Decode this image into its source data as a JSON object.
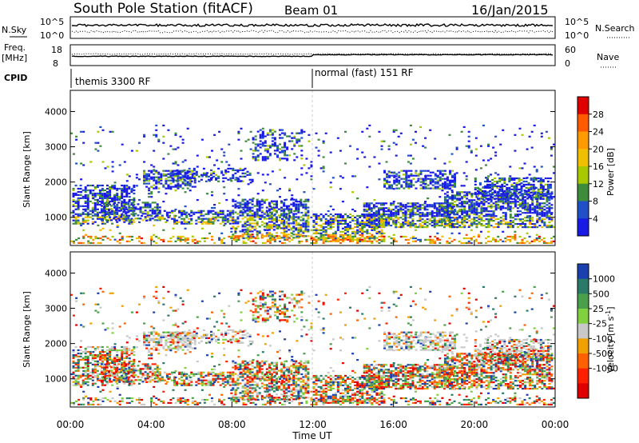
{
  "header": {
    "title": "South Pole Station (fitACF)",
    "beam": "Beam 01",
    "date": "16/Jan/2015"
  },
  "chart_data": [
    {
      "type": "line",
      "panel": "n-sky-search",
      "left_label": "N.Sky",
      "right_label": "N.Search",
      "left_ticks": [
        "10^5",
        "10^0"
      ],
      "right_ticks": [
        "10^5",
        "10^0"
      ]
    },
    {
      "type": "line",
      "panel": "freq-nave",
      "left_label_line1": "Freq.",
      "left_label_line2": "[MHz]",
      "right_label": "Nave",
      "left_ticks": [
        "18",
        "8"
      ],
      "right_ticks": [
        "60",
        "0"
      ]
    },
    {
      "type": "table",
      "panel": "cpid",
      "label": "CPID",
      "segments": [
        {
          "start_hour": 0,
          "name": "themis 3300 RF"
        },
        {
          "start_hour": 12,
          "name": "normal (fast) 151 RF"
        }
      ]
    },
    {
      "type": "heatmap",
      "panel": "power",
      "ylabel": "Slant Range [km]",
      "y_ticks": [
        1000,
        2000,
        3000,
        4000
      ],
      "ylim": [
        200,
        4600
      ],
      "xlim": [
        0,
        24
      ],
      "colorbar_label": "Power [dB]",
      "colorbar_ticks": [
        "28",
        "24",
        "20",
        "16",
        "12",
        "8",
        "4"
      ],
      "colorbar_colors": [
        "#e00000",
        "#ff5a00",
        "#ff9a00",
        "#f0c000",
        "#a8c800",
        "#3c8c3c",
        "#2050c8",
        "#1a1ae6"
      ]
    },
    {
      "type": "heatmap",
      "panel": "velocity",
      "ylabel": "Slant Range [km]",
      "y_ticks": [
        1000,
        2000,
        3000,
        4000
      ],
      "ylim": [
        200,
        4600
      ],
      "xlim": [
        0,
        24
      ],
      "xlabel": "Time UT",
      "x_ticks": [
        "00:00",
        "04:00",
        "08:00",
        "12:00",
        "16:00",
        "20:00",
        "00:00"
      ],
      "colorbar_label": "Velocity [m s",
      "colorbar_label_sup": "-1",
      "colorbar_label_end": "]",
      "colorbar_ticks": [
        "1000",
        "500",
        "25",
        "-25",
        "-100",
        "-500",
        "-1000"
      ],
      "colorbar_colors": [
        "#1a40b0",
        "#2a7a6a",
        "#4aa04a",
        "#80d040",
        "#c8c8c8",
        "#f0a000",
        "#ff6000",
        "#ff2000",
        "#e00000"
      ]
    }
  ]
}
